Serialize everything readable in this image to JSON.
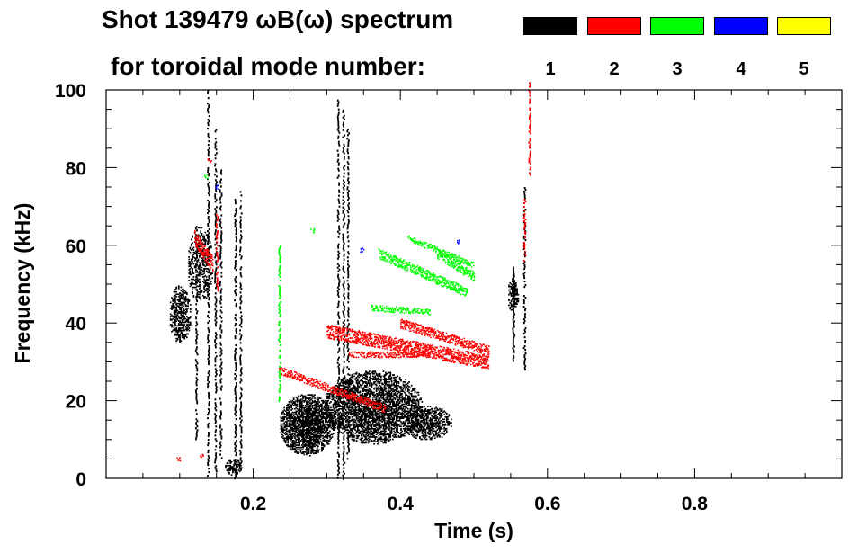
{
  "chart_data": {
    "type": "heatmap",
    "title": "Shot 139479 ωB(ω) spectrum",
    "subtitle": "for toroidal mode number:",
    "xlabel": "Time (s)",
    "ylabel": "Frequency (kHz)",
    "xlim": [
      0.0,
      1.0
    ],
    "ylim": [
      0,
      100
    ],
    "xticks": [
      0.2,
      0.4,
      0.6,
      0.8
    ],
    "xtick_labels": [
      "0.2",
      "0.4",
      "0.6",
      "0.8"
    ],
    "yticks": [
      0,
      20,
      40,
      60,
      80,
      100
    ],
    "ytick_labels": [
      "0",
      "20",
      "40",
      "60",
      "80",
      "100"
    ],
    "grid": false,
    "legend": [
      {
        "label": "1",
        "color": "#000000"
      },
      {
        "label": "2",
        "color": "#ff0000"
      },
      {
        "label": "3",
        "color": "#00ff00"
      },
      {
        "label": "4",
        "color": "#0000ff"
      },
      {
        "label": "5",
        "color": "#ffff00"
      }
    ],
    "series": [
      {
        "name": "n=1",
        "color": "#000000",
        "features": [
          {
            "kind": "blob",
            "t": [
              0.085,
              0.115
            ],
            "f": [
              35,
              50
            ],
            "density": 0.55
          },
          {
            "kind": "blob",
            "t": [
              0.11,
              0.145
            ],
            "f": [
              45,
              65
            ],
            "density": 0.35
          },
          {
            "kind": "blob",
            "t": [
              0.235,
              0.31
            ],
            "f": [
              6,
              22
            ],
            "density": 0.75
          },
          {
            "kind": "blob",
            "t": [
              0.295,
              0.43
            ],
            "f": [
              9,
              28
            ],
            "density": 0.6
          },
          {
            "kind": "blob",
            "t": [
              0.4,
              0.47
            ],
            "f": [
              10,
              19
            ],
            "density": 0.55
          },
          {
            "kind": "blob",
            "t": [
              0.16,
              0.185
            ],
            "f": [
              1,
              5
            ],
            "density": 0.5
          },
          {
            "kind": "blob",
            "t": [
              0.545,
              0.56
            ],
            "f": [
              43,
              52
            ],
            "density": 0.6
          },
          {
            "kind": "streak",
            "t": 0.138,
            "f": [
              0,
              100
            ]
          },
          {
            "kind": "streak",
            "t": 0.148,
            "f": [
              2,
              90
            ]
          },
          {
            "kind": "streak",
            "t": 0.155,
            "f": [
              5,
              80
            ]
          },
          {
            "kind": "streak",
            "t": 0.175,
            "f": [
              0,
              72
            ]
          },
          {
            "kind": "streak",
            "t": 0.182,
            "f": [
              3,
              74
            ]
          },
          {
            "kind": "streak",
            "t": 0.122,
            "f": [
              10,
              65
            ]
          },
          {
            "kind": "streak",
            "t": 0.315,
            "f": [
              0,
              98
            ]
          },
          {
            "kind": "streak",
            "t": 0.322,
            "f": [
              0,
              95
            ]
          },
          {
            "kind": "streak",
            "t": 0.328,
            "f": [
              5,
              90
            ]
          },
          {
            "kind": "streak",
            "t": 0.568,
            "f": [
              28,
              75
            ]
          },
          {
            "kind": "streak",
            "t": 0.553,
            "f": [
              30,
              55
            ]
          }
        ]
      },
      {
        "name": "n=2",
        "color": "#ff0000",
        "features": [
          {
            "kind": "track",
            "t": [
              0.235,
              0.38
            ],
            "f": [
              28,
              18
            ],
            "width": 2.0
          },
          {
            "kind": "track",
            "t": [
              0.3,
              0.52
            ],
            "f": [
              38,
              30
            ],
            "width": 3.5
          },
          {
            "kind": "track",
            "t": [
              0.33,
              0.44
            ],
            "f": [
              32,
              32
            ],
            "width": 1.5
          },
          {
            "kind": "track",
            "t": [
              0.4,
              0.52
            ],
            "f": [
              40,
              33
            ],
            "width": 2.5
          },
          {
            "kind": "track",
            "t": [
              0.12,
              0.145
            ],
            "f": [
              62,
              55
            ],
            "width": 4.0
          },
          {
            "kind": "streak",
            "t": 0.15,
            "f": [
              48,
              68
            ]
          },
          {
            "kind": "streak",
            "t": 0.575,
            "f": [
              78,
              102
            ]
          },
          {
            "kind": "streak",
            "t": 0.568,
            "f": [
              56,
              72
            ]
          },
          {
            "kind": "spot",
            "t": 0.14,
            "f": 82
          },
          {
            "kind": "spot",
            "t": 0.098,
            "f": 5
          },
          {
            "kind": "spot",
            "t": 0.13,
            "f": 6
          }
        ]
      },
      {
        "name": "n=3",
        "color": "#00ff00",
        "features": [
          {
            "kind": "track",
            "t": [
              0.37,
              0.49
            ],
            "f": [
              58,
              48
            ],
            "width": 2.5
          },
          {
            "kind": "track",
            "t": [
              0.41,
              0.5
            ],
            "f": [
              62,
              55
            ],
            "width": 1.5
          },
          {
            "kind": "track",
            "t": [
              0.45,
              0.5
            ],
            "f": [
              58,
              52
            ],
            "width": 2.5
          },
          {
            "kind": "track",
            "t": [
              0.36,
              0.44
            ],
            "f": [
              44,
              43
            ],
            "width": 1.5
          },
          {
            "kind": "streak",
            "t": 0.235,
            "f": [
              20,
              60
            ]
          },
          {
            "kind": "spot",
            "t": 0.28,
            "f": 64
          },
          {
            "kind": "spot",
            "t": 0.135,
            "f": 78
          }
        ]
      },
      {
        "name": "n=4",
        "color": "#0000ff",
        "features": [
          {
            "kind": "spot",
            "t": 0.15,
            "f": 75
          },
          {
            "kind": "spot",
            "t": 0.478,
            "f": 61
          },
          {
            "kind": "spot",
            "t": 0.347,
            "f": 59
          }
        ]
      },
      {
        "name": "n=5",
        "color": "#ffff00",
        "features": []
      }
    ]
  }
}
